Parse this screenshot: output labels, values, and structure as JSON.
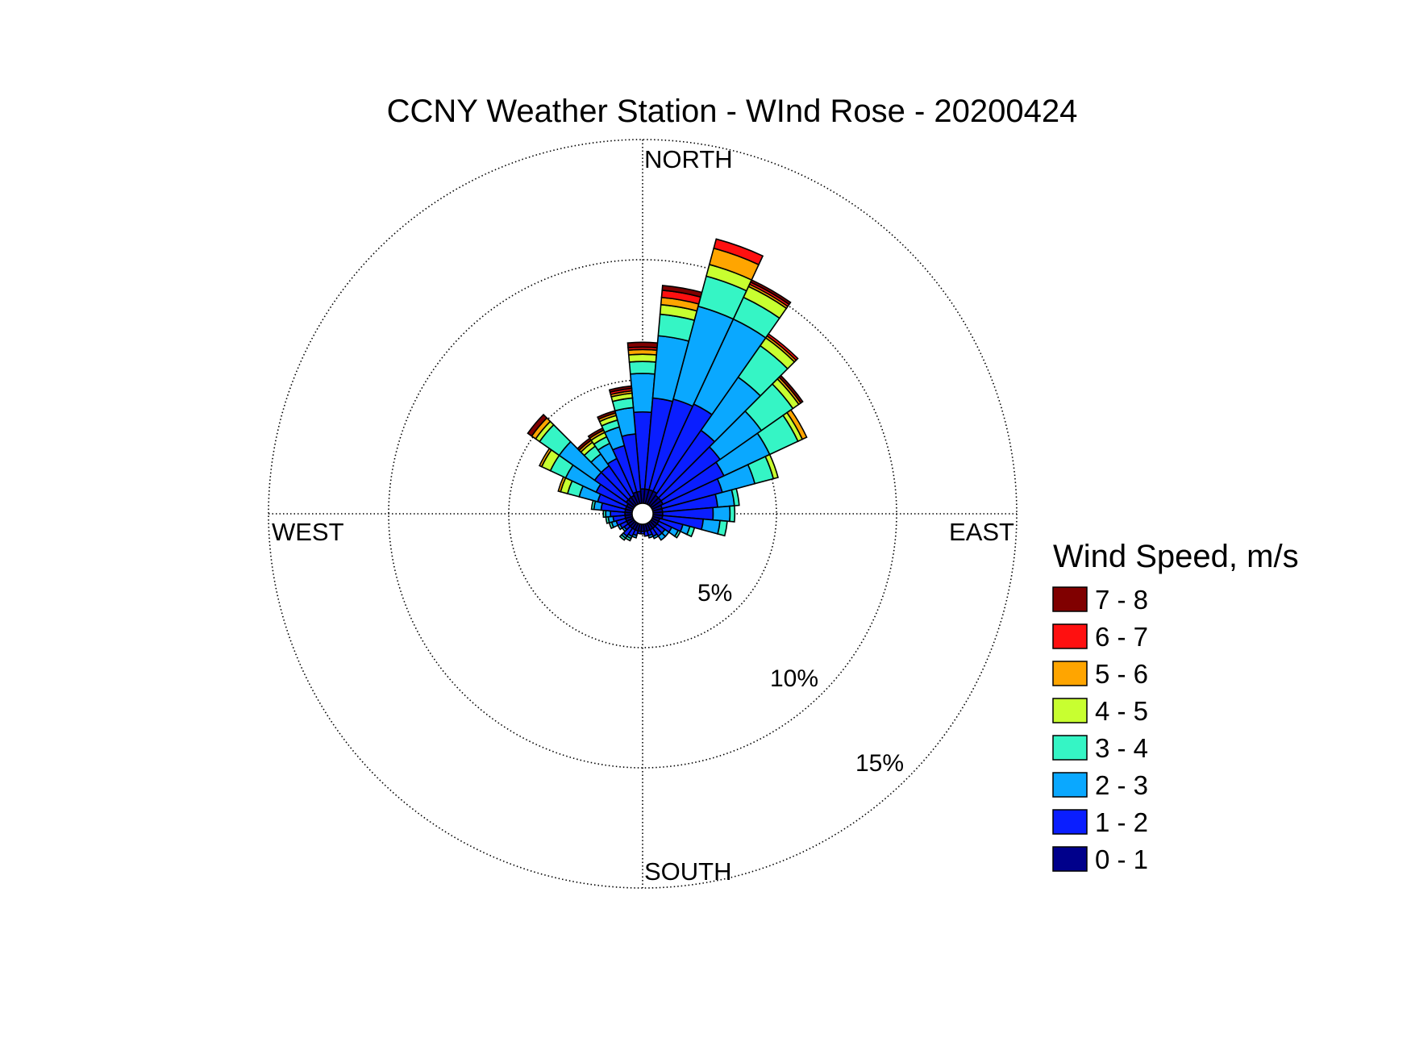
{
  "chart_data": {
    "type": "wind-rose",
    "title": "CCNY Weather Station - WInd Rose - 20200424",
    "directions": {
      "north": "NORTH",
      "east": "EAST",
      "south": "SOUTH",
      "west": "WEST"
    },
    "radial_axis": {
      "unit": "%",
      "max": 15,
      "rings": [
        5,
        10,
        15
      ],
      "ring_labels": [
        "5%",
        "10%",
        "15%"
      ]
    },
    "legend": {
      "title": "Wind Speed, m/s",
      "bins": [
        {
          "label": "7 - 8",
          "color": "#800000"
        },
        {
          "label": "6 - 7",
          "color": "#ff1010"
        },
        {
          "label": "5 - 6",
          "color": "#ffa500"
        },
        {
          "label": "4 - 5",
          "color": "#c8ff30"
        },
        {
          "label": "3 - 4",
          "color": "#35f5c5"
        },
        {
          "label": "2 - 3",
          "color": "#0aa8ff"
        },
        {
          "label": "1 - 2",
          "color": "#0a1eff"
        },
        {
          "label": "0 - 1",
          "color": "#00008b"
        }
      ]
    },
    "sector_width_deg": 10,
    "bin_order": [
      "0 - 1",
      "1 - 2",
      "2 - 3",
      "3 - 4",
      "4 - 5",
      "5 - 6",
      "6 - 7",
      "7 - 8"
    ],
    "sectors": [
      {
        "direction_deg": 0,
        "frequencies_pct": [
          0.6,
          3.2,
          1.6,
          0.5,
          0.3,
          0.2,
          0.1,
          0.2
        ]
      },
      {
        "direction_deg": 10,
        "frequencies_pct": [
          0.6,
          3.8,
          2.6,
          0.9,
          0.4,
          0.3,
          0.3,
          0.2
        ]
      },
      {
        "direction_deg": 20,
        "frequencies_pct": [
          0.6,
          3.9,
          4.0,
          1.3,
          0.5,
          0.7,
          0.4,
          0.0
        ]
      },
      {
        "direction_deg": 30,
        "frequencies_pct": [
          0.6,
          4.0,
          3.9,
          1.0,
          0.5,
          0.1,
          0.1,
          0.1
        ]
      },
      {
        "direction_deg": 40,
        "frequencies_pct": [
          0.5,
          3.3,
          2.7,
          1.6,
          0.4,
          0.1,
          0.1,
          0.0
        ]
      },
      {
        "direction_deg": 50,
        "frequencies_pct": [
          0.5,
          3.0,
          2.1,
          1.6,
          0.3,
          0.1,
          0.0,
          0.1
        ]
      },
      {
        "direction_deg": 60,
        "frequencies_pct": [
          0.5,
          2.8,
          2.1,
          1.3,
          0.2,
          0.2,
          0.0,
          0.0
        ]
      },
      {
        "direction_deg": 70,
        "frequencies_pct": [
          0.4,
          2.6,
          1.4,
          0.8,
          0.2,
          0.0,
          0.0,
          0.0
        ]
      },
      {
        "direction_deg": 80,
        "frequencies_pct": [
          0.4,
          2.3,
          0.7,
          0.2,
          0.0,
          0.0,
          0.0,
          0.0
        ]
      },
      {
        "direction_deg": 90,
        "frequencies_pct": [
          0.4,
          2.1,
          0.7,
          0.2,
          0.0,
          0.0,
          0.0,
          0.0
        ]
      },
      {
        "direction_deg": 100,
        "frequencies_pct": [
          0.4,
          1.7,
          0.7,
          0.3,
          0.0,
          0.0,
          0.0,
          0.0
        ]
      },
      {
        "direction_deg": 110,
        "frequencies_pct": [
          0.3,
          1.0,
          0.3,
          0.2,
          0.0,
          0.0,
          0.0,
          0.0
        ]
      },
      {
        "direction_deg": 120,
        "frequencies_pct": [
          0.3,
          0.6,
          0.3,
          0.1,
          0.0,
          0.0,
          0.0,
          0.0
        ]
      },
      {
        "direction_deg": 130,
        "frequencies_pct": [
          0.3,
          0.4,
          0.2,
          0.0,
          0.0,
          0.0,
          0.0,
          0.0
        ]
      },
      {
        "direction_deg": 140,
        "frequencies_pct": [
          0.3,
          0.4,
          0.2,
          0.0,
          0.0,
          0.0,
          0.0,
          0.0
        ]
      },
      {
        "direction_deg": 150,
        "frequencies_pct": [
          0.3,
          0.3,
          0.1,
          0.0,
          0.0,
          0.0,
          0.0,
          0.0
        ]
      },
      {
        "direction_deg": 160,
        "frequencies_pct": [
          0.3,
          0.2,
          0.1,
          0.0,
          0.0,
          0.0,
          0.0,
          0.0
        ]
      },
      {
        "direction_deg": 170,
        "frequencies_pct": [
          0.3,
          0.2,
          0.0,
          0.0,
          0.0,
          0.0,
          0.0,
          0.0
        ]
      },
      {
        "direction_deg": 180,
        "frequencies_pct": [
          0.3,
          0.1,
          0.0,
          0.0,
          0.0,
          0.0,
          0.0,
          0.0
        ]
      },
      {
        "direction_deg": 190,
        "frequencies_pct": [
          0.3,
          0.1,
          0.0,
          0.0,
          0.0,
          0.0,
          0.0,
          0.0
        ]
      },
      {
        "direction_deg": 200,
        "frequencies_pct": [
          0.3,
          0.2,
          0.1,
          0.0,
          0.0,
          0.0,
          0.0,
          0.0
        ]
      },
      {
        "direction_deg": 210,
        "frequencies_pct": [
          0.3,
          0.3,
          0.1,
          0.1,
          0.0,
          0.0,
          0.0,
          0.0
        ]
      },
      {
        "direction_deg": 220,
        "frequencies_pct": [
          0.3,
          0.4,
          0.1,
          0.1,
          0.0,
          0.0,
          0.0,
          0.0
        ]
      },
      {
        "direction_deg": 230,
        "frequencies_pct": [
          0.3,
          0.2,
          0.1,
          0.0,
          0.0,
          0.0,
          0.0,
          0.0
        ]
      },
      {
        "direction_deg": 240,
        "frequencies_pct": [
          0.3,
          0.3,
          0.1,
          0.0,
          0.0,
          0.0,
          0.0,
          0.0
        ]
      },
      {
        "direction_deg": 250,
        "frequencies_pct": [
          0.3,
          0.4,
          0.2,
          0.1,
          0.0,
          0.0,
          0.0,
          0.0
        ]
      },
      {
        "direction_deg": 260,
        "frequencies_pct": [
          0.3,
          0.5,
          0.2,
          0.1,
          0.0,
          0.0,
          0.0,
          0.0
        ]
      },
      {
        "direction_deg": 270,
        "frequencies_pct": [
          0.3,
          0.6,
          0.2,
          0.1,
          0.0,
          0.0,
          0.0,
          0.0
        ]
      },
      {
        "direction_deg": 280,
        "frequencies_pct": [
          0.3,
          1.0,
          0.3,
          0.1,
          0.0,
          0.0,
          0.0,
          0.0
        ]
      },
      {
        "direction_deg": 290,
        "frequencies_pct": [
          0.3,
          1.2,
          0.8,
          0.5,
          0.3,
          0.1,
          0.0,
          0.0
        ]
      },
      {
        "direction_deg": 300,
        "frequencies_pct": [
          0.3,
          1.4,
          1.4,
          0.7,
          0.4,
          0.1,
          0.0,
          0.0
        ]
      },
      {
        "direction_deg": 310,
        "frequencies_pct": [
          0.4,
          1.6,
          1.8,
          1.0,
          0.2,
          0.2,
          0.0,
          0.2
        ]
      },
      {
        "direction_deg": 320,
        "frequencies_pct": [
          0.4,
          1.6,
          0.6,
          0.4,
          0.2,
          0.1,
          0.0,
          0.1
        ]
      },
      {
        "direction_deg": 330,
        "frequencies_pct": [
          0.4,
          1.7,
          0.7,
          0.3,
          0.2,
          0.1,
          0.0,
          0.1
        ]
      },
      {
        "direction_deg": 340,
        "frequencies_pct": [
          0.5,
          2.0,
          0.8,
          0.3,
          0.2,
          0.1,
          0.0,
          0.1
        ]
      },
      {
        "direction_deg": 350,
        "frequencies_pct": [
          0.5,
          2.4,
          1.1,
          0.4,
          0.2,
          0.1,
          0.1,
          0.1
        ]
      }
    ]
  }
}
